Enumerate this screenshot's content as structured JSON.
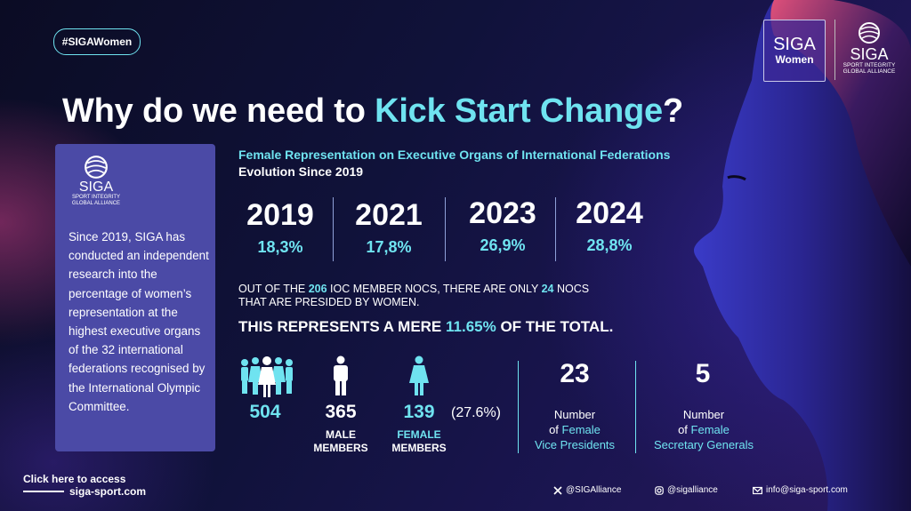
{
  "hashtag": "#SIGAWomen",
  "logos": {
    "women_line1": "SIGA",
    "women_line2": "Women",
    "siga_name": "SIGA",
    "siga_sub1": "SPORT INTEGRITY",
    "siga_sub2": "GLOBAL ALLIANCE"
  },
  "title": {
    "pre": "Why do we need to ",
    "highlight": "Kick Start Change",
    "post": "?"
  },
  "card": {
    "logo_name": "SIGA",
    "logo_sub1": "SPORT INTEGRITY",
    "logo_sub2": "GLOBAL ALLIANCE",
    "text": "Since 2019, SIGA has conducted an independent research into the percentage of women’s representation at the highest executive organs of the 32 international federations recognised by the International Olympic Committee."
  },
  "section": {
    "heading": "Female Representation on Executive Organs of International Federations",
    "subheading": "Evolution Since 2019"
  },
  "years": [
    {
      "year": "2019",
      "pct": "18,3%"
    },
    {
      "year": "2021",
      "pct": "17,8%"
    },
    {
      "year": "2023",
      "pct": "26,9%"
    },
    {
      "year": "2024",
      "pct": "28,8%"
    }
  ],
  "nocs": {
    "p1": "OUT OF THE ",
    "n1": "206",
    "p2": " IOC MEMBER NOCS, THERE ARE ONLY ",
    "n2": "24",
    "p3": " NOCS THAT ARE PRESIDED BY WOMEN."
  },
  "mere": {
    "pre": "THIS REPRESENTS A MERE ",
    "pct": "11.65%",
    "post": " OF THE TOTAL."
  },
  "members": {
    "total": "504",
    "male": "365",
    "male_label1": "MALE",
    "male_label2": "MEMBERS",
    "female": "139",
    "female_pct": "(27.6%)",
    "female_label1": "FEMALE",
    "female_label2": "MEMBERS"
  },
  "vice": {
    "num": "23",
    "l1": "Number",
    "l2a": "of ",
    "l2b": "Female",
    "l3": "Vice Presidents"
  },
  "secgen": {
    "num": "5",
    "l1": "Number",
    "l2a": "of ",
    "l2b": "Female",
    "l3": "Secretary Generals"
  },
  "footer": {
    "click": "Click here to access",
    "site": "siga-sport.com",
    "x_handle": "@SIGAlliance",
    "ig_handle": "@sigalliance",
    "email": "info@siga-sport.com"
  },
  "colors": {
    "accent": "#6fe3f0",
    "card": "#4b4aa6",
    "background": "#10123a"
  }
}
